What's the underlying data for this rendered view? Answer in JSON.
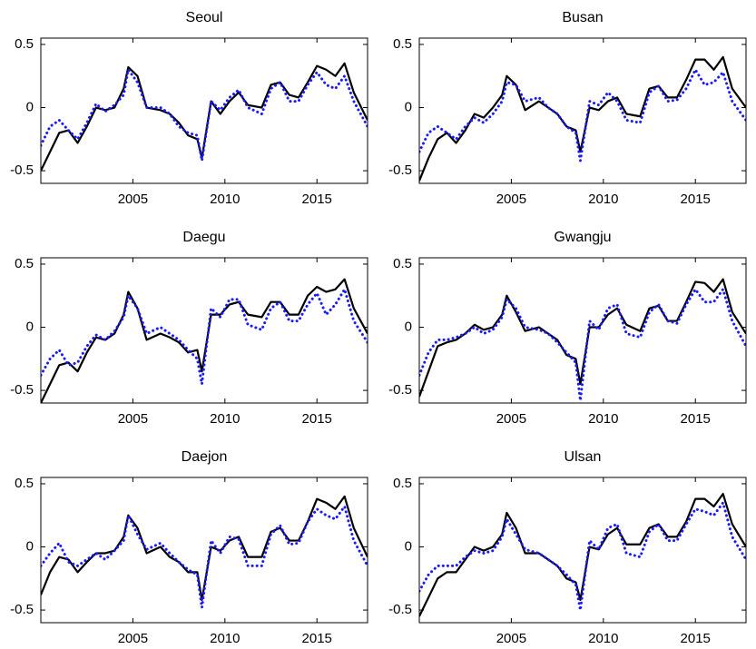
{
  "chart_data": [
    {
      "type": "line",
      "title": "Seoul",
      "x": [
        2000,
        2000.5,
        2001,
        2001.5,
        2002,
        2002.5,
        2003,
        2003.5,
        2004,
        2004.5,
        2004.75,
        2005.25,
        2005.75,
        2006.5,
        2007,
        2007.5,
        2008,
        2008.5,
        2008.75,
        2009.25,
        2009.75,
        2010.25,
        2010.75,
        2011.25,
        2012,
        2012.5,
        2013,
        2013.5,
        2014,
        2014.5,
        2015,
        2015.5,
        2016,
        2016.5,
        2017,
        2017.75
      ],
      "series": [
        {
          "color": "#000000",
          "dash": "solid",
          "values": [
            -0.5,
            -0.35,
            -0.2,
            -0.18,
            -0.28,
            -0.15,
            0,
            -0.02,
            0,
            0.15,
            0.32,
            0.25,
            0,
            -0.02,
            -0.05,
            -0.12,
            -0.22,
            -0.25,
            -0.4,
            0.05,
            -0.05,
            0.05,
            0.12,
            0.02,
            0,
            0.18,
            0.2,
            0.1,
            0.08,
            0.2,
            0.33,
            0.3,
            0.25,
            0.35,
            0.12,
            -0.1
          ]
        },
        {
          "color": "#1a1aff",
          "dash": "dotted",
          "values": [
            -0.3,
            -0.15,
            -0.1,
            -0.18,
            -0.25,
            -0.12,
            0.03,
            -0.03,
            0.02,
            0.1,
            0.3,
            0.2,
            0,
            0,
            -0.05,
            -0.15,
            -0.2,
            -0.22,
            -0.42,
            0.05,
            -0.02,
            0.08,
            0.14,
            0,
            -0.05,
            0.15,
            0.2,
            0.05,
            0.05,
            0.18,
            0.28,
            0.18,
            0.15,
            0.25,
            0.05,
            -0.15
          ]
        }
      ],
      "xlim": [
        2000,
        2017.75
      ],
      "ylim": [
        -0.6,
        0.55
      ],
      "xticks": [
        2005,
        2010,
        2015
      ],
      "yticks": [
        -0.5,
        0,
        0.5
      ]
    },
    {
      "type": "line",
      "title": "Busan",
      "x": [
        2000,
        2000.5,
        2001,
        2001.5,
        2002,
        2002.5,
        2003,
        2003.5,
        2004,
        2004.5,
        2004.75,
        2005.25,
        2005.75,
        2006.5,
        2007,
        2007.5,
        2008,
        2008.5,
        2008.75,
        2009.25,
        2009.75,
        2010.25,
        2010.75,
        2011.25,
        2012,
        2012.5,
        2013,
        2013.5,
        2014,
        2014.5,
        2015,
        2015.5,
        2016,
        2016.5,
        2017,
        2017.75
      ],
      "series": [
        {
          "color": "#000000",
          "dash": "solid",
          "values": [
            -0.58,
            -0.4,
            -0.25,
            -0.2,
            -0.28,
            -0.18,
            -0.05,
            -0.08,
            0,
            0.1,
            0.25,
            0.18,
            -0.02,
            0.05,
            0,
            -0.05,
            -0.15,
            -0.18,
            -0.35,
            0,
            -0.02,
            0.05,
            0.08,
            -0.05,
            -0.07,
            0.15,
            0.17,
            0.08,
            0.08,
            0.22,
            0.38,
            0.38,
            0.3,
            0.4,
            0.15,
            0
          ]
        },
        {
          "color": "#1a1aff",
          "dash": "dotted",
          "values": [
            -0.35,
            -0.2,
            -0.15,
            -0.2,
            -0.25,
            -0.15,
            -0.08,
            -0.12,
            -0.05,
            0.05,
            0.2,
            0.18,
            0.05,
            0.08,
            0,
            -0.05,
            -0.15,
            -0.2,
            -0.42,
            0.05,
            0.02,
            0.12,
            0.05,
            -0.1,
            -0.12,
            0.12,
            0.17,
            0.05,
            0.06,
            0.15,
            0.3,
            0.18,
            0.2,
            0.28,
            0.05,
            -0.1
          ]
        }
      ],
      "xlim": [
        2000,
        2017.75
      ],
      "ylim": [
        -0.6,
        0.55
      ],
      "xticks": [
        2005,
        2010,
        2015
      ],
      "yticks": [
        -0.5,
        0,
        0.5
      ]
    },
    {
      "type": "line",
      "title": "Daegu",
      "x": [
        2000,
        2000.5,
        2001,
        2001.5,
        2002,
        2002.5,
        2003,
        2003.5,
        2004,
        2004.5,
        2004.75,
        2005.25,
        2005.75,
        2006.5,
        2007,
        2007.5,
        2008,
        2008.5,
        2008.75,
        2009.25,
        2009.75,
        2010.25,
        2010.75,
        2011.25,
        2012,
        2012.5,
        2013,
        2013.5,
        2014,
        2014.5,
        2015,
        2015.5,
        2016,
        2016.5,
        2017,
        2017.75
      ],
      "series": [
        {
          "color": "#000000",
          "dash": "solid",
          "values": [
            -0.6,
            -0.45,
            -0.3,
            -0.28,
            -0.35,
            -0.2,
            -0.08,
            -0.1,
            -0.05,
            0.1,
            0.28,
            0.15,
            -0.1,
            -0.05,
            -0.08,
            -0.12,
            -0.2,
            -0.18,
            -0.35,
            0.1,
            0.1,
            0.18,
            0.2,
            0.1,
            0.08,
            0.2,
            0.2,
            0.1,
            0.1,
            0.25,
            0.32,
            0.28,
            0.3,
            0.38,
            0.15,
            -0.05
          ]
        },
        {
          "color": "#1a1aff",
          "dash": "dotted",
          "values": [
            -0.38,
            -0.25,
            -0.18,
            -0.3,
            -0.28,
            -0.15,
            -0.06,
            -0.1,
            -0.03,
            0.08,
            0.25,
            0.15,
            -0.05,
            0,
            -0.05,
            -0.1,
            -0.18,
            -0.25,
            -0.45,
            0.15,
            0.08,
            0.22,
            0.22,
            0.02,
            -0.02,
            0.15,
            0.2,
            0.05,
            0.05,
            0.18,
            0.27,
            0.1,
            0.18,
            0.3,
            0.05,
            -0.12
          ]
        }
      ],
      "xlim": [
        2000,
        2017.75
      ],
      "ylim": [
        -0.6,
        0.55
      ],
      "xticks": [
        2005,
        2010,
        2015
      ],
      "yticks": [
        -0.5,
        0,
        0.5
      ]
    },
    {
      "type": "line",
      "title": "Gwangju",
      "x": [
        2000,
        2000.5,
        2001,
        2001.5,
        2002,
        2002.5,
        2003,
        2003.5,
        2004,
        2004.5,
        2004.75,
        2005.25,
        2005.75,
        2006.5,
        2007,
        2007.5,
        2008,
        2008.5,
        2008.75,
        2009.25,
        2009.75,
        2010.25,
        2010.75,
        2011.25,
        2012,
        2012.5,
        2013,
        2013.5,
        2014,
        2014.5,
        2015,
        2015.5,
        2016,
        2016.5,
        2017,
        2017.75
      ],
      "series": [
        {
          "color": "#000000",
          "dash": "solid",
          "values": [
            -0.55,
            -0.35,
            -0.15,
            -0.12,
            -0.1,
            -0.05,
            0.02,
            -0.02,
            0,
            0.1,
            0.25,
            0.12,
            -0.03,
            0,
            -0.05,
            -0.1,
            -0.22,
            -0.25,
            -0.45,
            0,
            0,
            0.1,
            0.15,
            0.02,
            -0.03,
            0.15,
            0.17,
            0.05,
            0.05,
            0.2,
            0.36,
            0.35,
            0.28,
            0.38,
            0.12,
            -0.05
          ]
        },
        {
          "color": "#1a1aff",
          "dash": "dotted",
          "values": [
            -0.38,
            -0.2,
            -0.1,
            -0.1,
            -0.08,
            -0.05,
            0,
            -0.05,
            -0.02,
            0.08,
            0.22,
            0.15,
            0,
            -0.02,
            -0.05,
            -0.12,
            -0.2,
            -0.28,
            -0.58,
            0.05,
            -0.02,
            0.15,
            0.18,
            -0.05,
            -0.08,
            0.12,
            0.18,
            0.05,
            0.03,
            0.18,
            0.3,
            0.2,
            0.2,
            0.3,
            0.05,
            -0.15
          ]
        }
      ],
      "xlim": [
        2000,
        2017.75
      ],
      "ylim": [
        -0.6,
        0.55
      ],
      "xticks": [
        2005,
        2010,
        2015
      ],
      "yticks": [
        -0.5,
        0,
        0.5
      ]
    },
    {
      "type": "line",
      "title": "Daejon",
      "x": [
        2000,
        2000.5,
        2001,
        2001.5,
        2002,
        2002.5,
        2003,
        2003.5,
        2004,
        2004.5,
        2004.75,
        2005.25,
        2005.75,
        2006.5,
        2007,
        2007.5,
        2008,
        2008.5,
        2008.75,
        2009.25,
        2009.75,
        2010.25,
        2010.75,
        2011.25,
        2012,
        2012.5,
        2013,
        2013.5,
        2014,
        2014.5,
        2015,
        2015.5,
        2016,
        2016.5,
        2017,
        2017.75
      ],
      "series": [
        {
          "color": "#000000",
          "dash": "solid",
          "values": [
            -0.38,
            -0.2,
            -0.08,
            -0.1,
            -0.2,
            -0.12,
            -0.05,
            -0.05,
            -0.03,
            0.08,
            0.25,
            0.15,
            -0.05,
            0,
            -0.08,
            -0.12,
            -0.2,
            -0.2,
            -0.42,
            0,
            -0.03,
            0.05,
            0.08,
            -0.08,
            -0.08,
            0.12,
            0.15,
            0.05,
            0.05,
            0.2,
            0.38,
            0.35,
            0.3,
            0.4,
            0.15,
            -0.08
          ]
        },
        {
          "color": "#1a1aff",
          "dash": "dotted",
          "values": [
            -0.15,
            -0.05,
            0.03,
            -0.12,
            -0.15,
            -0.1,
            -0.05,
            -0.1,
            -0.03,
            0.05,
            0.25,
            0.1,
            -0.02,
            0.03,
            -0.05,
            -0.12,
            -0.18,
            -0.22,
            -0.48,
            0.05,
            -0.05,
            0.08,
            0.06,
            -0.15,
            -0.15,
            0.1,
            0.17,
            0.02,
            0.03,
            0.2,
            0.3,
            0.25,
            0.22,
            0.32,
            0.05,
            -0.15
          ]
        }
      ],
      "xlim": [
        2000,
        2017.75
      ],
      "ylim": [
        -0.6,
        0.55
      ],
      "xticks": [
        2005,
        2010,
        2015
      ],
      "yticks": [
        -0.5,
        0,
        0.5
      ]
    },
    {
      "type": "line",
      "title": "Ulsan",
      "x": [
        2000,
        2000.5,
        2001,
        2001.5,
        2002,
        2002.5,
        2003,
        2003.5,
        2004,
        2004.5,
        2004.75,
        2005.25,
        2005.75,
        2006.5,
        2007,
        2007.5,
        2008,
        2008.5,
        2008.75,
        2009.25,
        2009.75,
        2010.25,
        2010.75,
        2011.25,
        2012,
        2012.5,
        2013,
        2013.5,
        2014,
        2014.5,
        2015,
        2015.5,
        2016,
        2016.5,
        2017,
        2017.75
      ],
      "series": [
        {
          "color": "#000000",
          "dash": "solid",
          "values": [
            -0.55,
            -0.4,
            -0.25,
            -0.2,
            -0.2,
            -0.1,
            0,
            -0.03,
            0,
            0.1,
            0.27,
            0.15,
            -0.05,
            -0.05,
            -0.1,
            -0.15,
            -0.25,
            -0.28,
            -0.42,
            0,
            -0.02,
            0.1,
            0.15,
            0.02,
            0.02,
            0.15,
            0.18,
            0.08,
            0.08,
            0.2,
            0.38,
            0.38,
            0.32,
            0.42,
            0.18,
            0
          ]
        },
        {
          "color": "#1a1aff",
          "dash": "dotted",
          "values": [
            -0.35,
            -0.22,
            -0.15,
            -0.15,
            -0.15,
            -0.08,
            -0.03,
            -0.05,
            -0.03,
            0.08,
            0.22,
            0.1,
            -0.02,
            -0.05,
            -0.1,
            -0.15,
            -0.22,
            -0.3,
            -0.5,
            0.05,
            -0.02,
            0.15,
            0.18,
            -0.05,
            -0.08,
            0.12,
            0.18,
            0.05,
            0.05,
            0.18,
            0.3,
            0.28,
            0.25,
            0.35,
            0.08,
            -0.1
          ]
        }
      ],
      "xlim": [
        2000,
        2017.75
      ],
      "ylim": [
        -0.6,
        0.55
      ],
      "xticks": [
        2005,
        2010,
        2015
      ],
      "yticks": [
        -0.5,
        0,
        0.5
      ]
    }
  ]
}
